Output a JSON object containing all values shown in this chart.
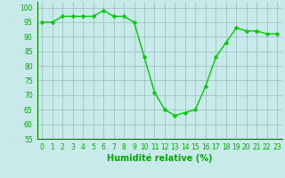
{
  "x": [
    0,
    1,
    2,
    3,
    4,
    5,
    6,
    7,
    8,
    9,
    10,
    11,
    12,
    13,
    14,
    15,
    16,
    17,
    18,
    19,
    20,
    21,
    22,
    23
  ],
  "y": [
    95,
    95,
    97,
    97,
    97,
    97,
    99,
    97,
    97,
    95,
    83,
    71,
    65,
    63,
    64,
    65,
    73,
    83,
    88,
    93,
    92,
    92,
    91,
    91
  ],
  "line_color": "#00cc00",
  "marker_color": "#00cc00",
  "bg_color": "#c8eaea",
  "grid_color": "#99bbbb",
  "xlabel": "Humidité relative (%)",
  "ylim": [
    55,
    102
  ],
  "xlim": [
    -0.5,
    23.5
  ],
  "yticks": [
    55,
    60,
    65,
    70,
    75,
    80,
    85,
    90,
    95,
    100
  ],
  "xlabel_fontsize": 7,
  "tick_fontsize": 5.5,
  "line_width": 1.0,
  "marker_size": 2.5
}
